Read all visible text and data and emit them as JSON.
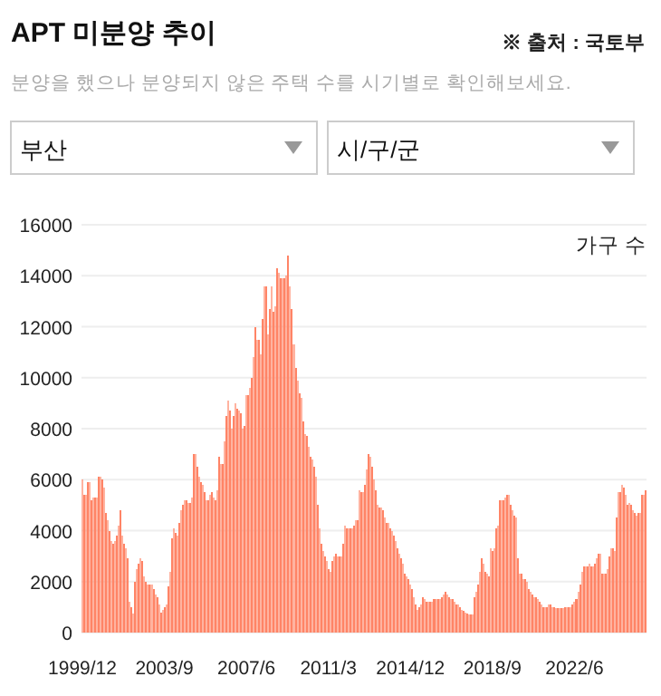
{
  "chart_data": {
    "type": "bar",
    "title": "APT 미분양 추이",
    "subtitle": "분양을 했으나 분양되지 않은 주택 수를 시기별로 확인해보세요.",
    "ylabel": "가구 수",
    "annotations": [
      "※ 출처 : 국토부",
      "부산",
      "시/구/군"
    ],
    "categories": [
      "1999/12",
      null,
      null,
      null,
      null,
      null,
      null,
      null,
      null,
      null,
      null,
      null,
      null,
      null,
      null,
      null,
      null,
      null,
      null,
      null,
      null,
      null,
      null,
      null,
      null,
      null,
      null,
      null,
      null,
      null,
      null,
      null,
      null,
      null,
      null,
      null,
      null,
      null,
      null,
      null,
      null,
      null,
      null,
      null,
      null,
      "2003/9",
      null,
      null,
      null,
      null,
      null,
      null,
      null,
      null,
      null,
      null,
      null,
      null,
      null,
      null,
      null,
      null,
      null,
      null,
      null,
      null,
      null,
      null,
      null,
      null,
      null,
      null,
      null,
      null,
      null,
      null,
      null,
      null,
      null,
      null,
      null,
      null,
      null,
      null,
      null,
      null,
      null,
      null,
      null,
      null,
      "2007/6",
      null,
      null,
      null,
      null,
      null,
      null,
      null,
      null,
      null,
      null,
      null,
      null,
      null,
      null,
      null,
      null,
      null,
      null,
      null,
      null,
      null,
      null,
      null,
      null,
      null,
      null,
      null,
      null,
      null,
      null,
      null,
      null,
      null,
      null,
      null,
      null,
      null,
      null,
      null,
      null,
      null,
      null,
      null,
      null,
      "2011/3",
      null,
      null,
      null,
      null,
      null,
      null,
      null,
      null,
      null,
      null,
      null,
      null,
      null,
      null,
      null,
      null,
      null,
      null,
      null,
      null,
      null,
      null,
      null,
      null,
      null,
      null,
      null,
      null,
      null,
      null,
      null,
      null,
      null,
      null,
      null,
      null,
      null,
      null,
      null,
      null,
      null,
      null,
      null,
      null,
      "2014/12",
      null,
      null,
      null,
      null,
      null,
      null,
      null,
      null,
      null,
      null,
      null,
      null,
      null,
      null,
      null,
      null,
      null,
      null,
      null,
      null,
      null,
      null,
      null,
      null,
      null,
      null,
      null,
      null,
      null,
      null,
      null,
      null,
      null,
      null,
      null,
      null,
      null,
      null,
      null,
      null,
      null,
      null,
      null,
      null,
      "2018/9",
      null,
      null,
      null,
      null,
      null,
      null,
      null,
      null,
      null,
      null,
      null,
      null,
      null,
      null,
      null,
      null,
      null,
      null,
      null,
      null,
      null,
      null,
      null,
      null,
      null,
      null,
      null,
      null,
      null,
      null,
      null,
      null,
      null,
      null,
      null,
      null,
      null,
      null,
      null,
      null,
      null,
      null,
      null,
      null,
      "2022/6",
      null,
      null,
      null,
      null,
      null,
      null,
      null,
      null,
      null,
      null,
      null,
      null,
      null,
      null,
      null,
      null,
      null,
      null,
      null,
      null,
      null,
      null,
      null,
      null,
      null,
      null,
      null,
      null,
      null,
      null,
      null,
      null,
      null,
      null,
      null,
      null,
      null,
      null,
      null
    ],
    "values": [
      6000,
      5400,
      5400,
      5900,
      5900,
      5200,
      5300,
      5300,
      5300,
      6100,
      6100,
      6000,
      5700,
      4700,
      4400,
      4000,
      3600,
      3500,
      3600,
      3800,
      4200,
      4800,
      3800,
      3500,
      3300,
      2900,
      1200,
      1000,
      750,
      2000,
      2500,
      2700,
      2900,
      2800,
      2200,
      2000,
      1900,
      1900,
      1900,
      1700,
      1500,
      1400,
      1100,
      800,
      900,
      1000,
      1100,
      1800,
      2400,
      3700,
      4100,
      3900,
      3800,
      4300,
      4800,
      5000,
      5200,
      5200,
      5100,
      5100,
      5300,
      7000,
      7000,
      6500,
      6100,
      5900,
      5800,
      5500,
      5200,
      5200,
      5400,
      5500,
      5300,
      5200,
      5600,
      6900,
      6600,
      6600,
      7500,
      8500,
      9100,
      8700,
      8000,
      8500,
      9000,
      8800,
      8700,
      8600,
      8000,
      8100,
      9300,
      9300,
      9600,
      10000,
      10800,
      12000,
      11500,
      11500,
      10900,
      12300,
      13600,
      13600,
      11700,
      12700,
      13600,
      12600,
      12800,
      14300,
      14100,
      13900,
      13900,
      13900,
      14000,
      14800,
      13600,
      12700,
      11300,
      10400,
      9900,
      9400,
      9200,
      8300,
      7800,
      7700,
      7300,
      6900,
      6800,
      6500,
      6100,
      5000,
      4100,
      3500,
      3200,
      3000,
      2800,
      2500,
      2400,
      2800,
      3000,
      3100,
      3000,
      3000,
      3000,
      3500,
      4200,
      4100,
      4100,
      4100,
      4100,
      4200,
      4400,
      4400,
      5600,
      5500,
      5500,
      5800,
      6400,
      7000,
      6900,
      6500,
      6000,
      5600,
      5000,
      4900,
      4900,
      4800,
      4500,
      4300,
      4300,
      4100,
      4000,
      3800,
      3600,
      3300,
      3100,
      2900,
      2700,
      2300,
      2200,
      2100,
      1900,
      1700,
      1400,
      1100,
      900,
      1000,
      1100,
      1400,
      1300,
      1200,
      1200,
      1200,
      1200,
      1300,
      1300,
      1300,
      1300,
      1400,
      1500,
      1600,
      1500,
      1400,
      1300,
      1300,
      1200,
      1100,
      1100,
      1000,
      900,
      850,
      800,
      750,
      700,
      700,
      700,
      1400,
      1600,
      1900,
      2400,
      2900,
      2700,
      2400,
      2300,
      2200,
      3300,
      3200,
      3300,
      4100,
      4200,
      5200,
      5200,
      5200,
      5300,
      5400,
      5400,
      5000,
      4800,
      4600,
      4500,
      2900,
      2300,
      2300,
      2100,
      2100,
      2000,
      1700,
      1600,
      1500,
      1400,
      1400,
      1300,
      1200,
      1100,
      1000,
      1000,
      1000,
      1100,
      1100,
      1000,
      1000,
      950,
      950,
      950,
      950,
      950,
      1000,
      1000,
      1000,
      1000,
      1100,
      1200,
      1300,
      1600,
      1900,
      2400,
      2600,
      2600,
      2600,
      2700,
      2600,
      2600,
      2700,
      2900,
      3100,
      3100,
      2300,
      2300,
      2300,
      2500,
      3000,
      3300,
      3300,
      3200,
      4500,
      5500,
      5500,
      5800,
      5700,
      5400,
      5000,
      5100,
      5000,
      4800,
      4700,
      4600,
      4700,
      4700,
      5400,
      5400,
      5600
    ],
    "color": "#ff8466",
    "ylim": [
      0,
      16000
    ],
    "yticks": [
      0,
      2000,
      4000,
      6000,
      8000,
      10000,
      12000,
      14000,
      16000
    ],
    "grid": "y"
  }
}
